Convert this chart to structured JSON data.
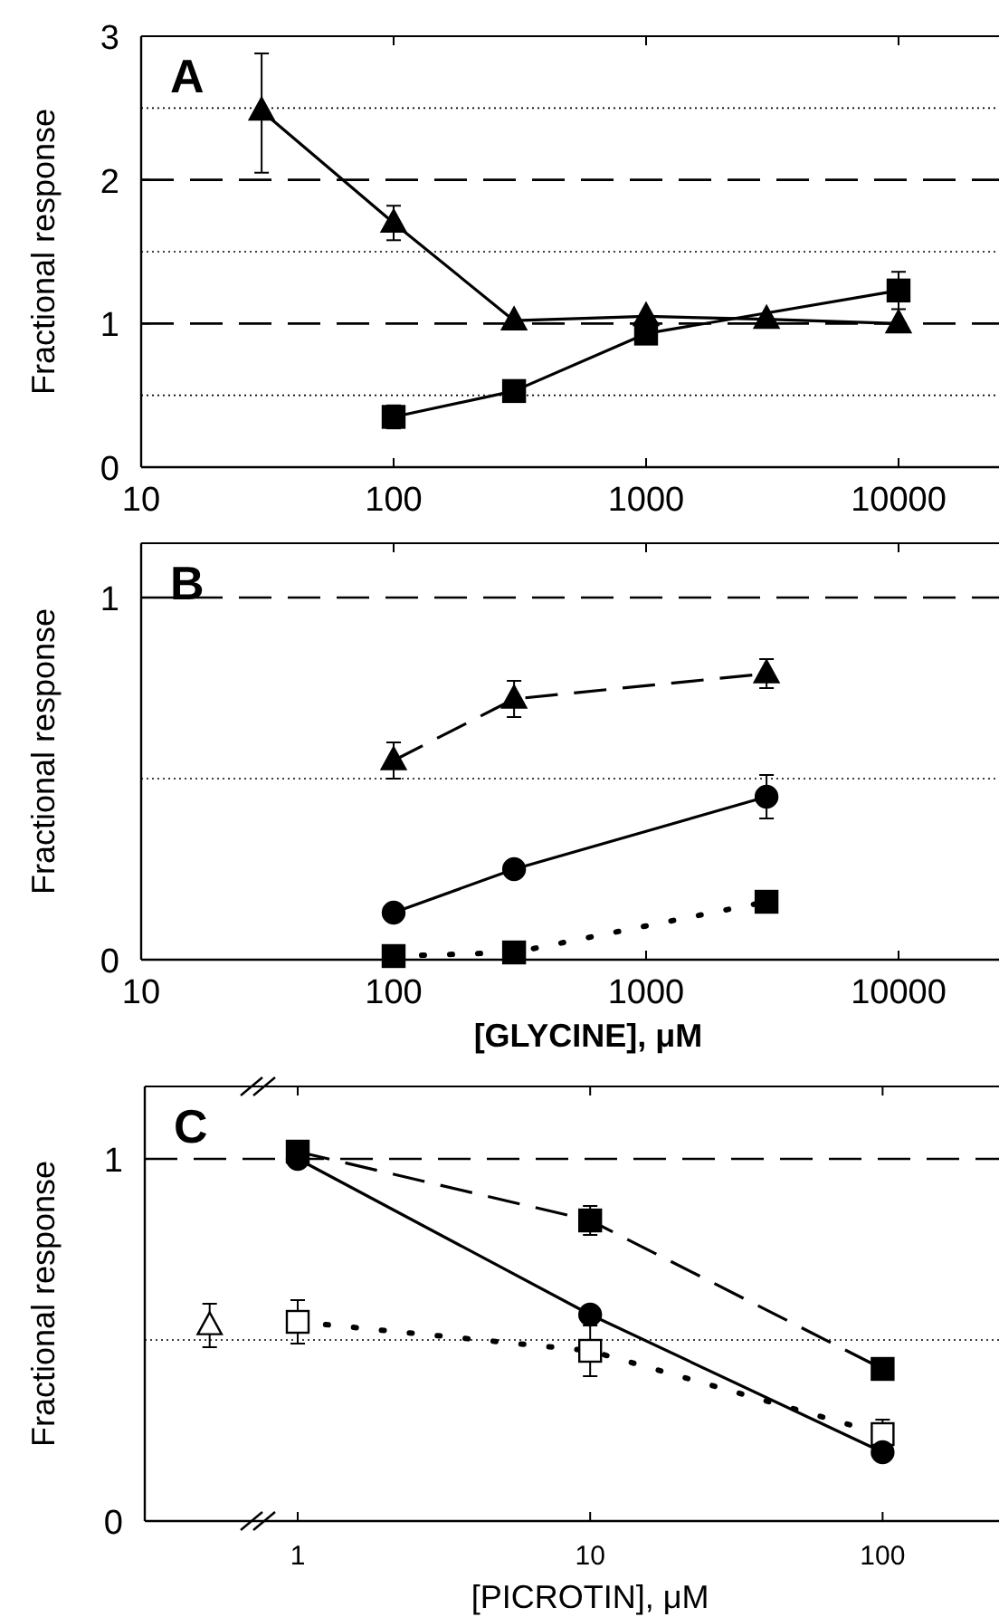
{
  "chart_data": [
    {
      "type": "line",
      "title": "A",
      "ylabel": "Fractional response",
      "log": "x",
      "xlim": [
        10,
        25000
      ],
      "xticks": [
        10,
        100,
        1000,
        10000
      ],
      "ylim": [
        0,
        3
      ],
      "yticks": [
        0,
        1,
        2,
        3
      ],
      "ref_lines": [
        {
          "axis": "y",
          "value": 0.5,
          "line_style": "dotted"
        },
        {
          "axis": "y",
          "value": 1,
          "line_style": "dashed"
        },
        {
          "axis": "y",
          "value": 1.5,
          "line_style": "dotted"
        },
        {
          "axis": "y",
          "value": 2,
          "line_style": "dashed"
        },
        {
          "axis": "y",
          "value": 2.5,
          "line_style": "dotted"
        }
      ],
      "series": [
        {
          "color": "#000000",
          "marker": "triangle",
          "line_style": "solid",
          "x": [
            30,
            100,
            300,
            1000,
            3000,
            10000
          ],
          "values": [
            2.48,
            1.7,
            1.02,
            1.05,
            1.03,
            1.0
          ],
          "errors": [
            [
              2.05,
              2.88
            ],
            0.12,
            null,
            null,
            null,
            null
          ]
        },
        {
          "color": "#000000",
          "marker": "square",
          "line_style": "solid",
          "x": [
            100,
            300,
            1000,
            10000
          ],
          "values": [
            0.35,
            0.53,
            0.93,
            1.23
          ],
          "errors": [
            0.08,
            null,
            null,
            0.13
          ]
        }
      ]
    },
    {
      "type": "line",
      "title": "B",
      "ylabel": "Fractional response",
      "xlabel": "[GLYCINE], μM",
      "log": "x",
      "xlim": [
        10,
        25000
      ],
      "xticks": [
        10,
        100,
        1000,
        10000
      ],
      "ylim": [
        0,
        1.15
      ],
      "yticks": [
        0,
        1
      ],
      "ref_lines": [
        {
          "axis": "y",
          "value": 0.5,
          "line_style": "dotted"
        },
        {
          "axis": "y",
          "value": 1,
          "line_style": "dashed"
        }
      ],
      "series": [
        {
          "color": "#000000",
          "marker": "triangle",
          "line_style": "dashed",
          "x": [
            100,
            300,
            3000
          ],
          "values": [
            0.55,
            0.72,
            0.79
          ],
          "errors": [
            0.05,
            0.05,
            0.04
          ]
        },
        {
          "color": "#000000",
          "marker": "circle",
          "line_style": "solid",
          "x": [
            100,
            300,
            3000
          ],
          "values": [
            0.13,
            0.25,
            0.45
          ],
          "errors": [
            null,
            null,
            0.06
          ]
        },
        {
          "color": "#000000",
          "marker": "square",
          "line_style": "dotted",
          "x": [
            100,
            300,
            3000
          ],
          "values": [
            0.01,
            0.02,
            0.16
          ]
        }
      ]
    },
    {
      "type": "line",
      "title": "C",
      "ylabel": "Fractional response",
      "xlabel": "[PICROTIN], μM",
      "log": "x",
      "xlim": [
        0.3,
        250
      ],
      "xticks": [
        1,
        10,
        100
      ],
      "ylim": [
        0,
        1.2
      ],
      "yticks": [
        0,
        1
      ],
      "ref_lines": [
        {
          "axis": "y",
          "value": 0.5,
          "line_style": "dotted"
        },
        {
          "axis": "y",
          "value": 1,
          "line_style": "dashed"
        }
      ],
      "series": [
        {
          "color": "#000000",
          "marker": "square",
          "line_style": "dashed",
          "x": [
            1,
            10,
            100
          ],
          "values": [
            1.02,
            0.83,
            0.42
          ],
          "errors": [
            null,
            0.04,
            null
          ]
        },
        {
          "color": "#000000",
          "marker": "circle",
          "line_style": "solid",
          "x": [
            1,
            10,
            100
          ],
          "values": [
            1.0,
            0.57,
            0.19
          ]
        },
        {
          "color": "#ffffff",
          "marker": "square",
          "line_style": "dotted",
          "x": [
            1,
            10,
            100
          ],
          "values": [
            0.55,
            0.47,
            0.24
          ],
          "errors": [
            0.06,
            0.07,
            0.04
          ]
        },
        {
          "color": "#ffffff",
          "marker": "triangle",
          "line_style": "none",
          "x": [
            0.5
          ],
          "values": [
            0.54
          ],
          "errors": [
            0.06
          ]
        }
      ]
    }
  ]
}
